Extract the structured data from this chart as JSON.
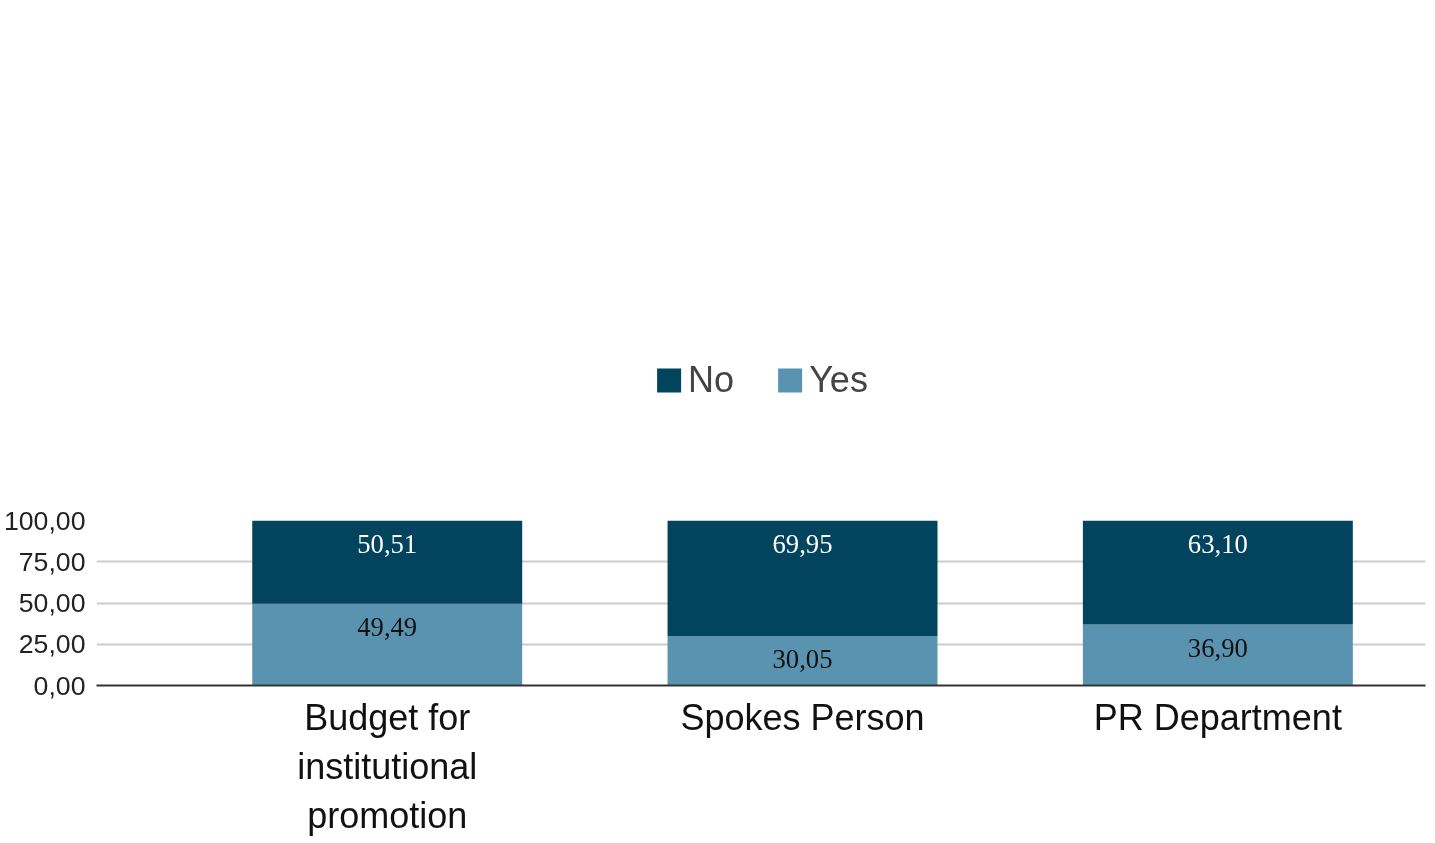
{
  "chart_data": {
    "type": "bar",
    "stacked": true,
    "categories": [
      "Budget for institutional promotion",
      "Spokes Person",
      "PR Department"
    ],
    "series": [
      {
        "name": "Yes",
        "color": "#5a93b0",
        "values": [
          49.49,
          30.05,
          36.9
        ],
        "value_labels": [
          "49,49",
          "30,05",
          "36,90"
        ]
      },
      {
        "name": "No",
        "color": "#02435e",
        "values": [
          50.51,
          69.95,
          63.1
        ],
        "value_labels": [
          "50,51",
          "69,95",
          "63,10"
        ]
      }
    ],
    "ylim": [
      0,
      100
    ],
    "yticks": [
      {
        "value": 0,
        "label": "0,00"
      },
      {
        "value": 25,
        "label": "25,00"
      },
      {
        "value": 50,
        "label": "50,00"
      },
      {
        "value": 75,
        "label": "75,00"
      },
      {
        "value": 100,
        "label": "100,00"
      }
    ],
    "grid": "y",
    "legend": "top"
  }
}
